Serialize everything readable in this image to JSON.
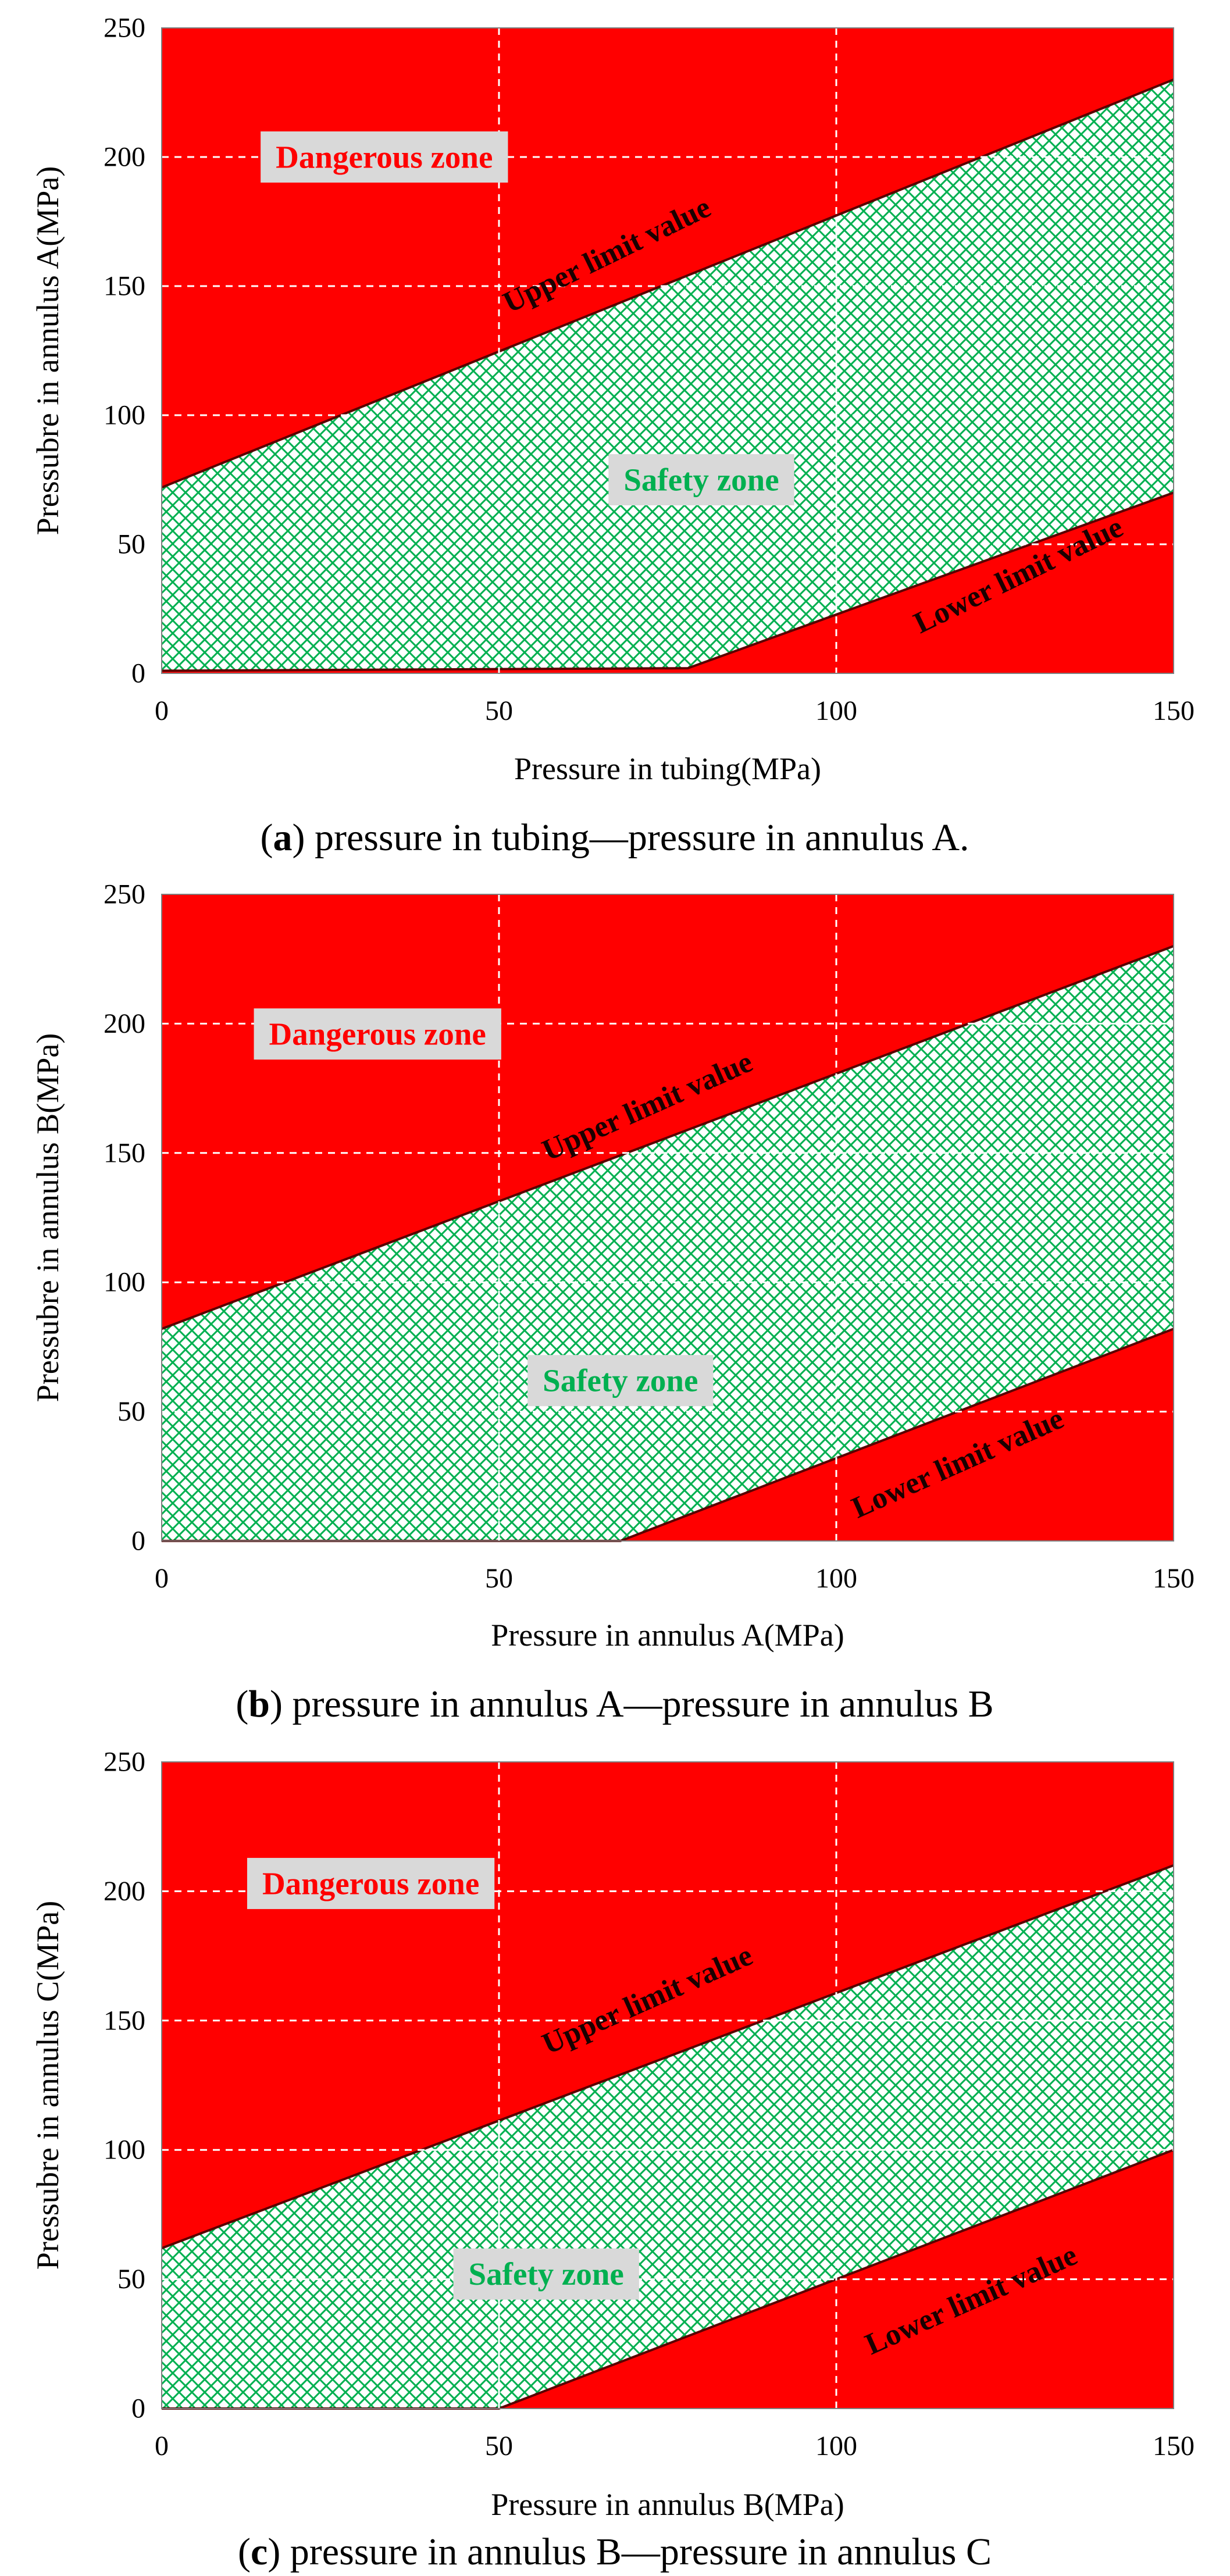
{
  "chart_data": [
    {
      "type": "area",
      "panel": "a",
      "caption_letter": "a",
      "caption_text": ") pressure in tubing—pressure in annulus A.",
      "xlabel": "Pressure in tubing(MPa)",
      "ylabel": "Pressubre in annulus A(MPa)",
      "xlim": [
        0,
        150
      ],
      "ylim": [
        0,
        250
      ],
      "x_ticks": [
        0,
        50,
        100,
        150
      ],
      "y_ticks": [
        0,
        50,
        100,
        150,
        200,
        250
      ],
      "grid": true,
      "colors": {
        "danger": "#ff0000",
        "safety_hatch": "#00b050",
        "safety_bg": "#ffffff",
        "label_box": "#d9d9d9",
        "danger_text": "#ff0000",
        "safety_text": "#00b050"
      },
      "series": [
        {
          "name": "Upper limit value",
          "x": [
            0,
            150
          ],
          "y": [
            72,
            230
          ]
        },
        {
          "name": "Lower limit value",
          "x": [
            0,
            78,
            150
          ],
          "y": [
            1,
            2,
            70
          ]
        }
      ],
      "annotations": [
        {
          "text": "Dangerous zone",
          "x": 33,
          "y": 200,
          "kind": "danger"
        },
        {
          "text": "Safety zone",
          "x": 80,
          "y": 75,
          "kind": "safety"
        },
        {
          "text": "Upper limit value",
          "x": 66,
          "y": 162,
          "kind": "limit",
          "angle": -26
        },
        {
          "text": "Lower limit value",
          "x": 127,
          "y": 38,
          "kind": "limit",
          "angle": -26
        }
      ]
    },
    {
      "type": "area",
      "panel": "b",
      "caption_letter": "b",
      "caption_text": ") pressure in annulus A—pressure in annulus B",
      "xlabel": "Pressure in annulus A(MPa)",
      "ylabel": "Pressubre in annulus B(MPa)",
      "xlim": [
        0,
        150
      ],
      "ylim": [
        0,
        250
      ],
      "x_ticks": [
        0,
        50,
        100,
        150
      ],
      "y_ticks": [
        0,
        50,
        100,
        150,
        200,
        250
      ],
      "grid": true,
      "colors": {
        "danger": "#ff0000",
        "safety_hatch": "#00b050",
        "safety_bg": "#ffffff",
        "label_box": "#d9d9d9",
        "danger_text": "#ff0000",
        "safety_text": "#00b050"
      },
      "series": [
        {
          "name": "Upper limit value",
          "x": [
            0,
            150
          ],
          "y": [
            82,
            230
          ]
        },
        {
          "name": "Lower limit value",
          "x": [
            0,
            68,
            150
          ],
          "y": [
            0,
            0,
            82
          ]
        }
      ],
      "annotations": [
        {
          "text": "Dangerous zone",
          "x": 32,
          "y": 196,
          "kind": "danger"
        },
        {
          "text": "Safety zone",
          "x": 68,
          "y": 62,
          "kind": "safety"
        },
        {
          "text": "Upper limit value",
          "x": 72,
          "y": 168,
          "kind": "limit",
          "angle": -24
        },
        {
          "text": "Lower limit value",
          "x": 118,
          "y": 30,
          "kind": "limit",
          "angle": -24
        }
      ]
    },
    {
      "type": "area",
      "panel": "c",
      "caption_letter": "c",
      "caption_text": ") pressure in annulus B—pressure in annulus C",
      "xlabel": "Pressure in annulus B(MPa)",
      "ylabel": "Pressubre in annulus C(MPa)",
      "xlim": [
        0,
        150
      ],
      "ylim": [
        0,
        250
      ],
      "x_ticks": [
        0,
        50,
        100,
        150
      ],
      "y_ticks": [
        0,
        50,
        100,
        150,
        200,
        250
      ],
      "grid": true,
      "colors": {
        "danger": "#ff0000",
        "safety_hatch": "#00b050",
        "safety_bg": "#ffffff",
        "label_box": "#d9d9d9",
        "danger_text": "#ff0000",
        "safety_text": "#00b050"
      },
      "series": [
        {
          "name": "Upper limit value",
          "x": [
            0,
            150
          ],
          "y": [
            62,
            210
          ]
        },
        {
          "name": "Lower limit value",
          "x": [
            0,
            50,
            150
          ],
          "y": [
            0,
            0,
            100
          ]
        }
      ],
      "annotations": [
        {
          "text": "Dangerous zone",
          "x": 31,
          "y": 203,
          "kind": "danger"
        },
        {
          "text": "Safety zone",
          "x": 57,
          "y": 52,
          "kind": "safety"
        },
        {
          "text": "Upper limit value",
          "x": 72,
          "y": 158,
          "kind": "limit",
          "angle": -24
        },
        {
          "text": "Lower limit value",
          "x": 120,
          "y": 42,
          "kind": "limit",
          "angle": -24
        }
      ]
    }
  ]
}
